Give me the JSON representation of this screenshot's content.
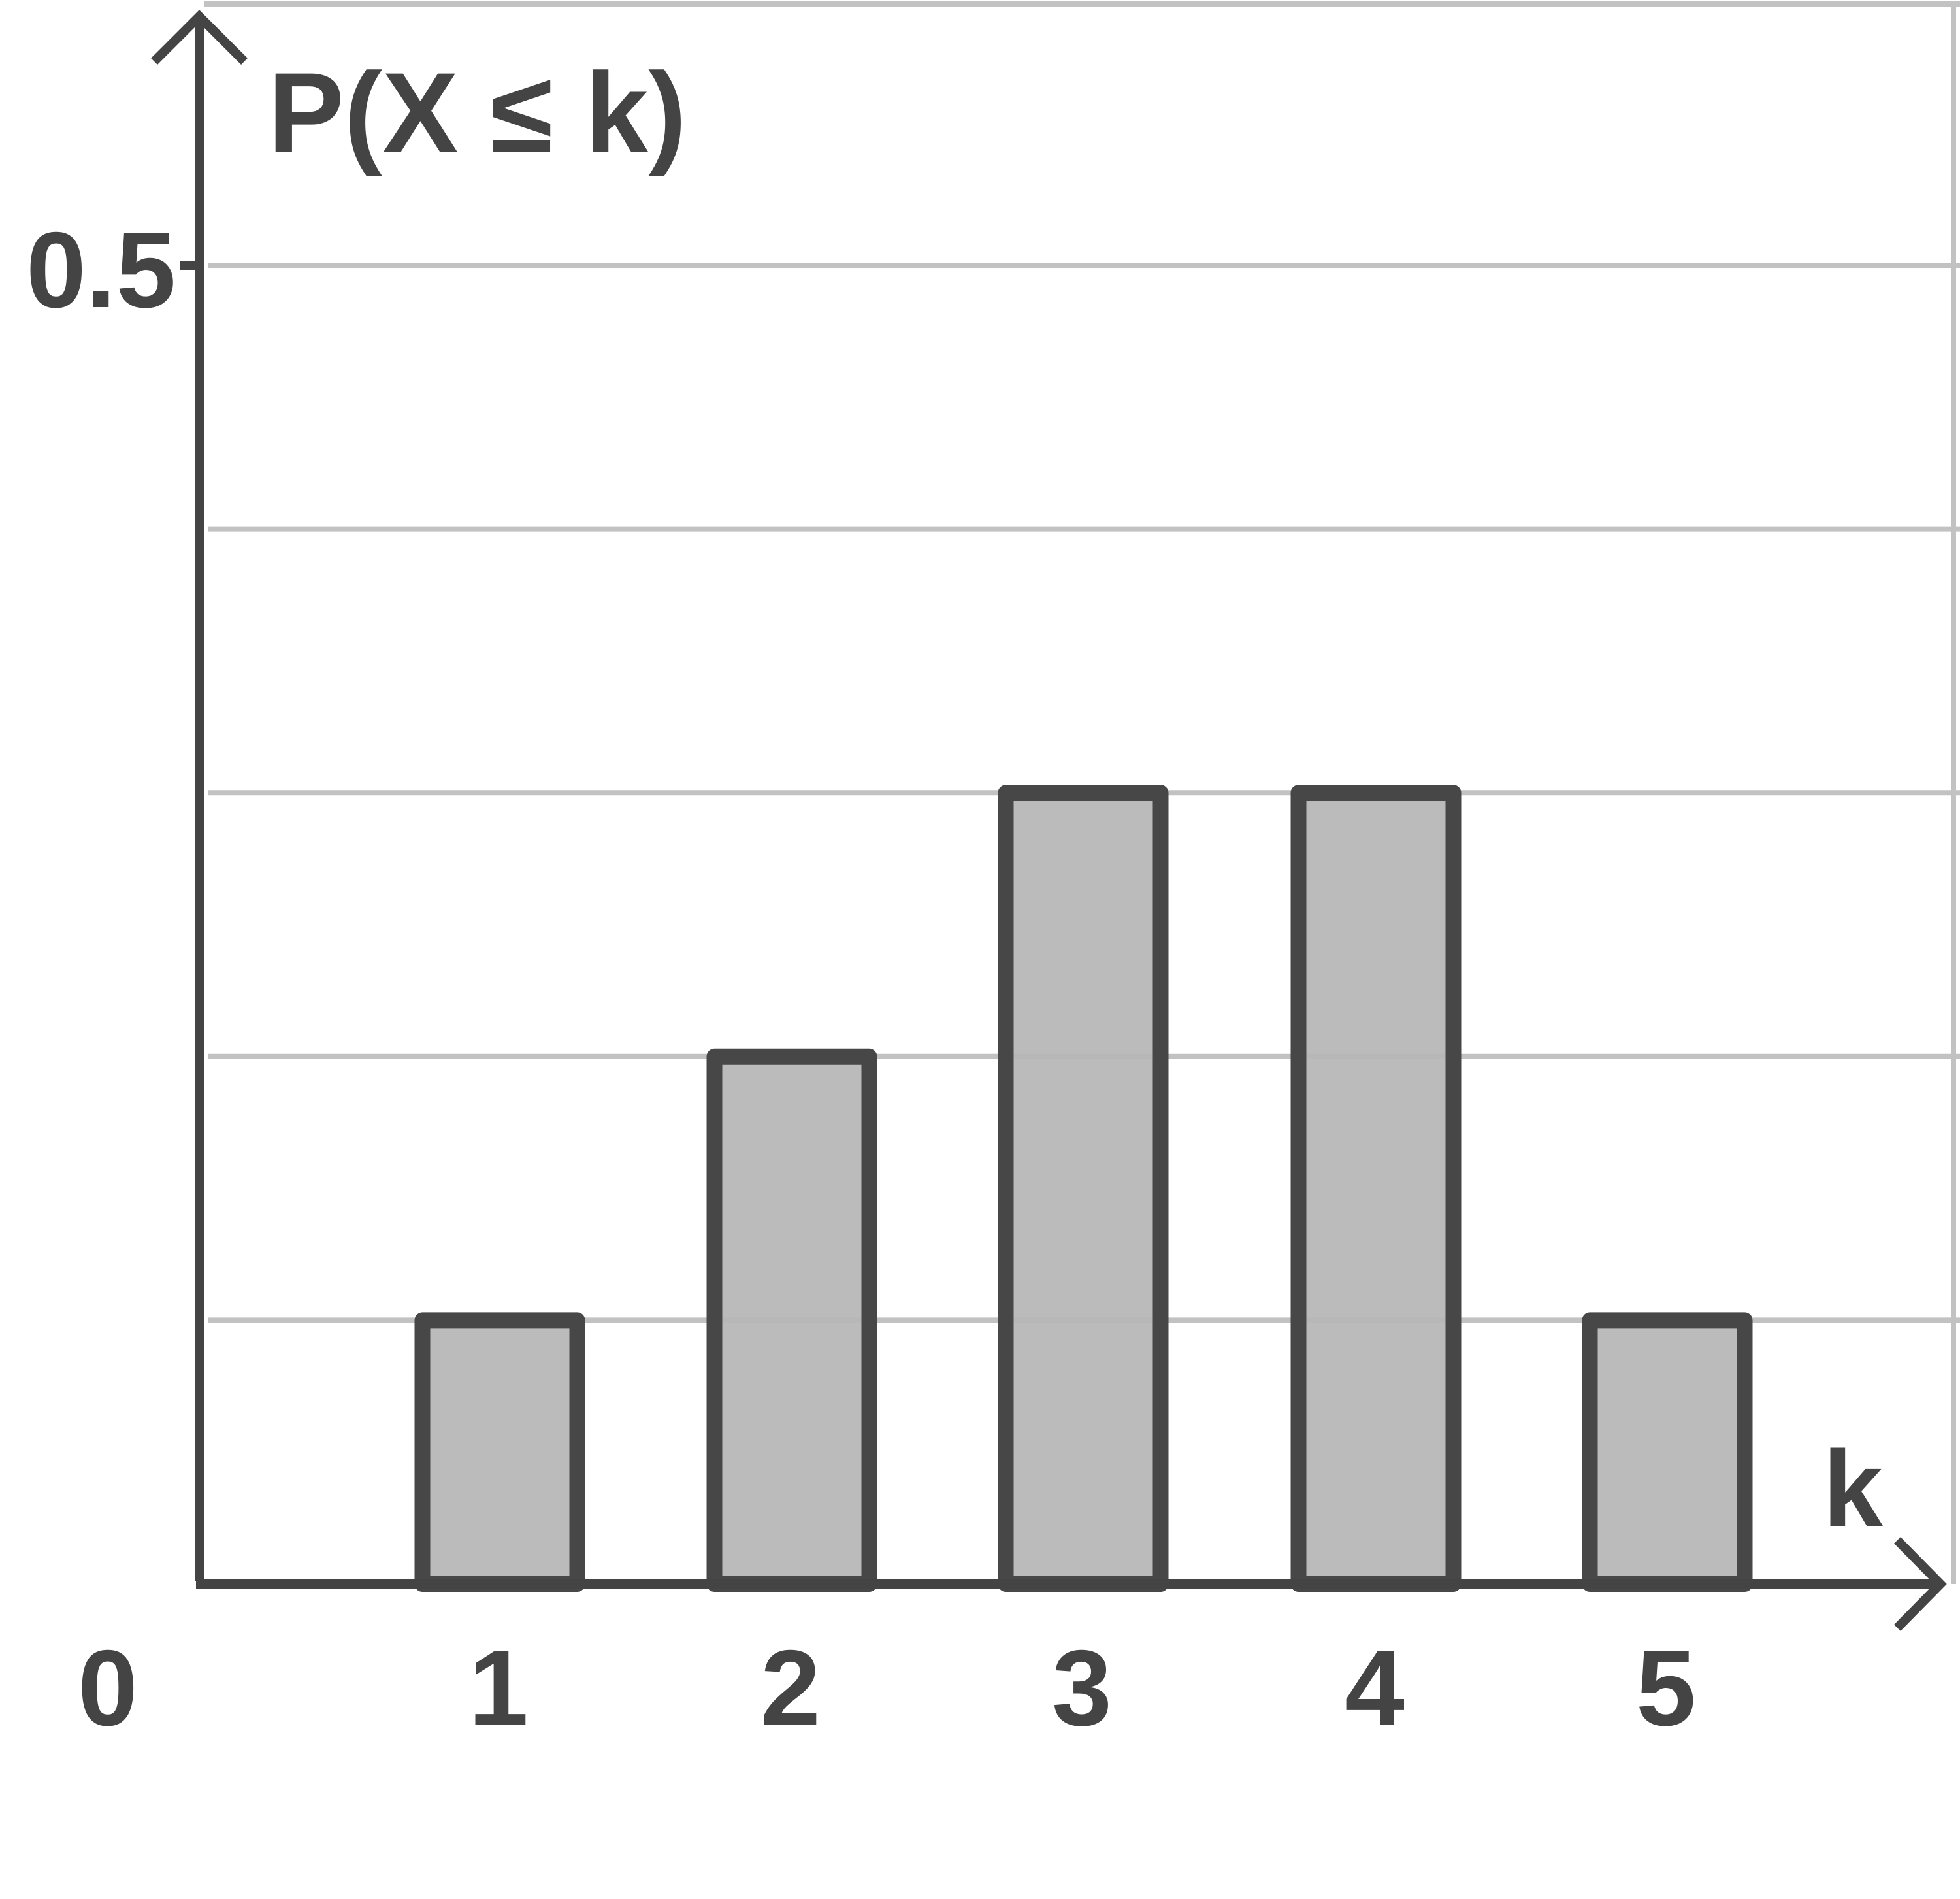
{
  "chart_data": {
    "type": "bar",
    "categories": [
      "1",
      "2",
      "3",
      "4",
      "5"
    ],
    "values": [
      0.1,
      0.2,
      0.3,
      0.3,
      0.1
    ],
    "ylabel": "P(X ≤ k)",
    "xlabel": "k",
    "origin_label": "0",
    "ytick_labels": [
      "0.5"
    ],
    "ylim": [
      0,
      0.5
    ],
    "grid_y": [
      0.1,
      0.2,
      0.3,
      0.4,
      0.5
    ],
    "grid": true,
    "colors": {
      "bar_fill": "#b6b6b6",
      "bar_stroke": "#474747",
      "axis": "#444444",
      "grid": "#c2c2c2"
    }
  }
}
